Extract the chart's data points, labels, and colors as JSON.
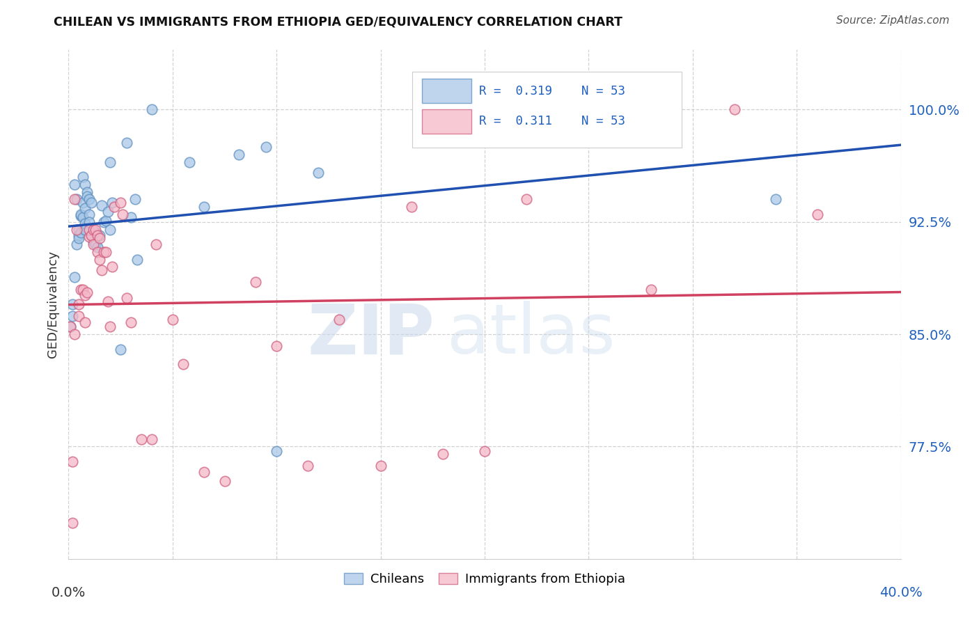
{
  "title": "CHILEAN VS IMMIGRANTS FROM ETHIOPIA GED/EQUIVALENCY CORRELATION CHART",
  "source": "Source: ZipAtlas.com",
  "ylabel": "GED/Equivalency",
  "ytick_labels": [
    "100.0%",
    "92.5%",
    "85.0%",
    "77.5%"
  ],
  "ytick_values": [
    1.0,
    0.925,
    0.85,
    0.775
  ],
  "blue_color": "#a8c8e8",
  "pink_color": "#f4b8c8",
  "blue_edge": "#6090c0",
  "pink_edge": "#d06080",
  "trend_blue": "#2050b0",
  "trend_pink": "#d04060",
  "trend_dashed": "#90b8d8",
  "watermark_zip_color": "#c8d8ec",
  "watermark_atlas_color": "#c8d8ec",
  "background_color": "#ffffff",
  "grid_color": "#cccccc",
  "legend_text_color": "#2050b0",
  "legend_R_color": "#2060c0",
  "right_tick_color": "#2060c0",
  "blue_x": [
    0.001,
    0.002,
    0.002,
    0.003,
    0.003,
    0.004,
    0.004,
    0.005,
    0.005,
    0.005,
    0.006,
    0.006,
    0.006,
    0.007,
    0.007,
    0.007,
    0.008,
    0.008,
    0.008,
    0.008,
    0.009,
    0.009,
    0.01,
    0.01,
    0.01,
    0.011,
    0.011,
    0.012,
    0.013,
    0.013,
    0.014,
    0.015,
    0.016,
    0.017,
    0.018,
    0.019,
    0.02,
    0.02,
    0.021,
    0.025,
    0.028,
    0.03,
    0.032,
    0.033,
    0.04,
    0.058,
    0.065,
    0.082,
    0.095,
    0.1,
    0.12,
    0.25,
    0.34
  ],
  "blue_y": [
    0.855,
    0.862,
    0.87,
    0.888,
    0.95,
    0.91,
    0.94,
    0.92,
    0.916,
    0.914,
    0.929,
    0.93,
    0.918,
    0.955,
    0.938,
    0.928,
    0.95,
    0.934,
    0.924,
    0.92,
    0.945,
    0.942,
    0.94,
    0.93,
    0.925,
    0.938,
    0.916,
    0.912,
    0.918,
    0.91,
    0.908,
    0.916,
    0.936,
    0.925,
    0.926,
    0.932,
    0.965,
    0.92,
    0.938,
    0.84,
    0.978,
    0.928,
    0.94,
    0.9,
    1.0,
    0.965,
    0.935,
    0.97,
    0.975,
    0.772,
    0.958,
    1.0,
    0.94
  ],
  "pink_x": [
    0.001,
    0.002,
    0.002,
    0.003,
    0.003,
    0.004,
    0.005,
    0.005,
    0.006,
    0.007,
    0.008,
    0.008,
    0.009,
    0.01,
    0.01,
    0.011,
    0.012,
    0.012,
    0.013,
    0.014,
    0.014,
    0.015,
    0.015,
    0.016,
    0.017,
    0.018,
    0.019,
    0.02,
    0.021,
    0.022,
    0.025,
    0.026,
    0.028,
    0.03,
    0.035,
    0.04,
    0.042,
    0.05,
    0.055,
    0.065,
    0.075,
    0.09,
    0.1,
    0.115,
    0.13,
    0.15,
    0.165,
    0.18,
    0.2,
    0.22,
    0.28,
    0.32,
    0.36
  ],
  "pink_y": [
    0.855,
    0.724,
    0.765,
    0.85,
    0.94,
    0.92,
    0.862,
    0.87,
    0.88,
    0.88,
    0.876,
    0.858,
    0.878,
    0.915,
    0.92,
    0.916,
    0.92,
    0.91,
    0.92,
    0.905,
    0.916,
    0.9,
    0.914,
    0.893,
    0.905,
    0.905,
    0.872,
    0.855,
    0.895,
    0.935,
    0.938,
    0.93,
    0.874,
    0.858,
    0.78,
    0.78,
    0.91,
    0.86,
    0.83,
    0.758,
    0.752,
    0.885,
    0.842,
    0.762,
    0.86,
    0.762,
    0.935,
    0.77,
    0.772,
    0.94,
    0.88,
    1.0,
    0.93
  ],
  "xlim": [
    0.0,
    0.4
  ],
  "ylim": [
    0.7,
    1.04
  ],
  "marker_size": 110
}
